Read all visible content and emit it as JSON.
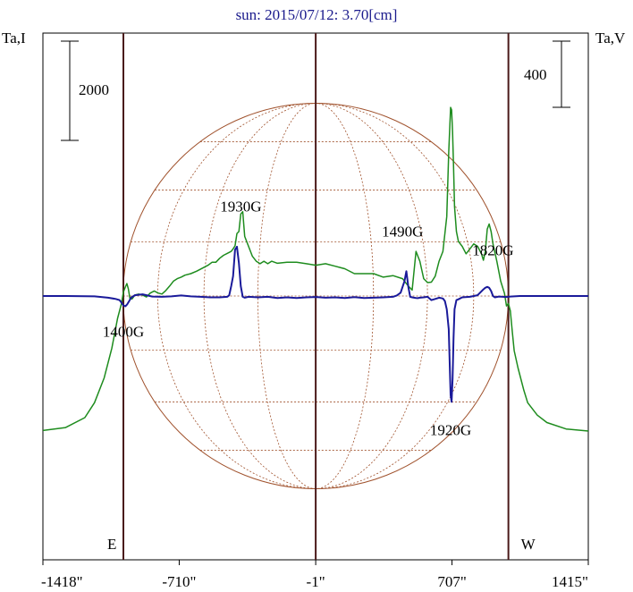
{
  "chart_data": {
    "type": "line",
    "title": "sun: 2015/07/12: 3.70[cm]",
    "left_axis_label": "Ta,I",
    "right_axis_label": "Ta,V",
    "left_scale_bar": "2000",
    "right_scale_bar": "400",
    "x_ticks": [
      "-1418\"",
      "-710\"",
      "-1\"",
      "707\"",
      "1415\""
    ],
    "x_tick_values": [
      -1418,
      -710,
      -1,
      707,
      1415
    ],
    "xlim": [
      -1418,
      1415
    ],
    "limb_markers": [
      {
        "label": "E",
        "x": -1000
      },
      {
        "label": "W",
        "x": 1000
      }
    ],
    "center_marker_x": -1,
    "grid": false,
    "solar_disk": true,
    "annotations": [
      "1930G",
      "1490G",
      "1820G",
      "1400G",
      "1920G"
    ],
    "series": [
      {
        "color": "#1e8c1e",
        "axis": "left",
        "x": [
          -1418,
          -1300,
          -1200,
          -1150,
          -1100,
          -1060,
          -1030,
          -1010,
          -1000,
          -990,
          -982,
          -974,
          -966,
          -955,
          -940,
          -920,
          -900,
          -880,
          -860,
          -840,
          -820,
          -800,
          -780,
          -760,
          -740,
          -720,
          -700,
          -680,
          -650,
          -620,
          -590,
          -560,
          -540,
          -520,
          -500,
          -480,
          -460,
          -440,
          -430,
          -420,
          -410,
          -400,
          -390,
          -380,
          -370,
          -350,
          -330,
          -310,
          -290,
          -270,
          -250,
          -230,
          -200,
          -150,
          -100,
          -50,
          0,
          50,
          100,
          150,
          200,
          250,
          300,
          350,
          400,
          450,
          480,
          500,
          520,
          540,
          560,
          580,
          600,
          620,
          640,
          660,
          680,
          690,
          700,
          705,
          710,
          715,
          720,
          730,
          740,
          760,
          780,
          800,
          820,
          840,
          860,
          870,
          880,
          890,
          900,
          910,
          920,
          940,
          960,
          980,
          990,
          1000,
          1010,
          1020,
          1030,
          1050,
          1080,
          1100,
          1150,
          1200,
          1300,
          1415
        ],
        "values": [
          -2710,
          -2650,
          -2450,
          -2150,
          -1650,
          -1050,
          -450,
          -150,
          80,
          180,
          250,
          140,
          -50,
          -60,
          20,
          40,
          20,
          -20,
          60,
          100,
          60,
          40,
          110,
          200,
          300,
          350,
          380,
          420,
          450,
          500,
          560,
          620,
          680,
          680,
          760,
          820,
          860,
          900,
          950,
          1010,
          1260,
          1300,
          1650,
          1700,
          1200,
          1000,
          800,
          700,
          650,
          700,
          650,
          700,
          660,
          680,
          680,
          650,
          620,
          650,
          600,
          550,
          450,
          450,
          450,
          380,
          410,
          350,
          200,
          120,
          900,
          700,
          350,
          270,
          280,
          400,
          700,
          900,
          1600,
          2900,
          3800,
          3750,
          3300,
          2600,
          1800,
          1300,
          1100,
          1000,
          850,
          950,
          1050,
          1000,
          850,
          720,
          900,
          1350,
          1450,
          1300,
          1050,
          700,
          300,
          50,
          -200,
          -150,
          -300,
          -700,
          -1100,
          -1450,
          -1900,
          -2150,
          -2400,
          -2550,
          -2680,
          -2720
        ]
      },
      {
        "color": "#1a1a9a",
        "axis": "right",
        "x": [
          -1418,
          -1300,
          -1150,
          -1080,
          -1040,
          -1020,
          -1010,
          -1000,
          -990,
          -980,
          -970,
          -960,
          -940,
          -900,
          -850,
          -800,
          -750,
          -700,
          -650,
          -600,
          -550,
          -500,
          -460,
          -450,
          -440,
          -430,
          -420,
          -410,
          -400,
          -390,
          -380,
          -370,
          -350,
          -300,
          -250,
          -200,
          -150,
          -100,
          -50,
          0,
          50,
          100,
          150,
          200,
          250,
          300,
          350,
          400,
          420,
          440,
          460,
          470,
          480,
          490,
          500,
          510,
          520,
          530,
          540,
          560,
          580,
          600,
          620,
          640,
          660,
          670,
          680,
          690,
          700,
          705,
          710,
          715,
          720,
          730,
          740,
          760,
          800,
          840,
          870,
          880,
          890,
          900,
          910,
          920,
          930,
          950,
          970,
          990,
          1000,
          1010,
          1030,
          1060,
          1100,
          1200,
          1300,
          1415
        ],
        "values": [
          0,
          0,
          -2,
          -10,
          -18,
          -25,
          -40,
          -57,
          -62,
          -50,
          -30,
          -10,
          5,
          10,
          -3,
          -5,
          -2,
          3,
          -2,
          -5,
          -8,
          -8,
          -5,
          5,
          60,
          120,
          280,
          298,
          200,
          60,
          -5,
          -10,
          -5,
          -8,
          -5,
          -12,
          -8,
          -12,
          -8,
          -6,
          -10,
          -8,
          -12,
          -7,
          -12,
          -10,
          -8,
          -5,
          3,
          20,
          90,
          150,
          55,
          -5,
          -8,
          -10,
          -12,
          -13,
          -10,
          -8,
          -5,
          -25,
          -18,
          -10,
          -15,
          -30,
          -80,
          -200,
          -600,
          -640,
          -500,
          -250,
          -80,
          -25,
          -20,
          -8,
          -5,
          5,
          40,
          50,
          55,
          50,
          30,
          0,
          -8,
          -3,
          -5,
          -6,
          -5,
          -3,
          -2,
          0,
          0,
          0,
          0,
          0
        ]
      }
    ]
  },
  "annotation_positions": [
    {
      "label": "1930G",
      "x": -390,
      "y": 1700
    },
    {
      "label": "1490G",
      "x": 450,
      "y": 1200
    },
    {
      "label": "1820G",
      "x": 920,
      "y": 820
    },
    {
      "label": "1400G",
      "x": -1000,
      "y": -820
    },
    {
      "label": "1920G",
      "x": 700,
      "y": -2800
    }
  ],
  "colors": {
    "intensity": "#1e8c1e",
    "polarization": "#1a1a9a",
    "disk": "#a0522d",
    "marker": "#4a1a1a",
    "title": "#1a1a8c"
  }
}
